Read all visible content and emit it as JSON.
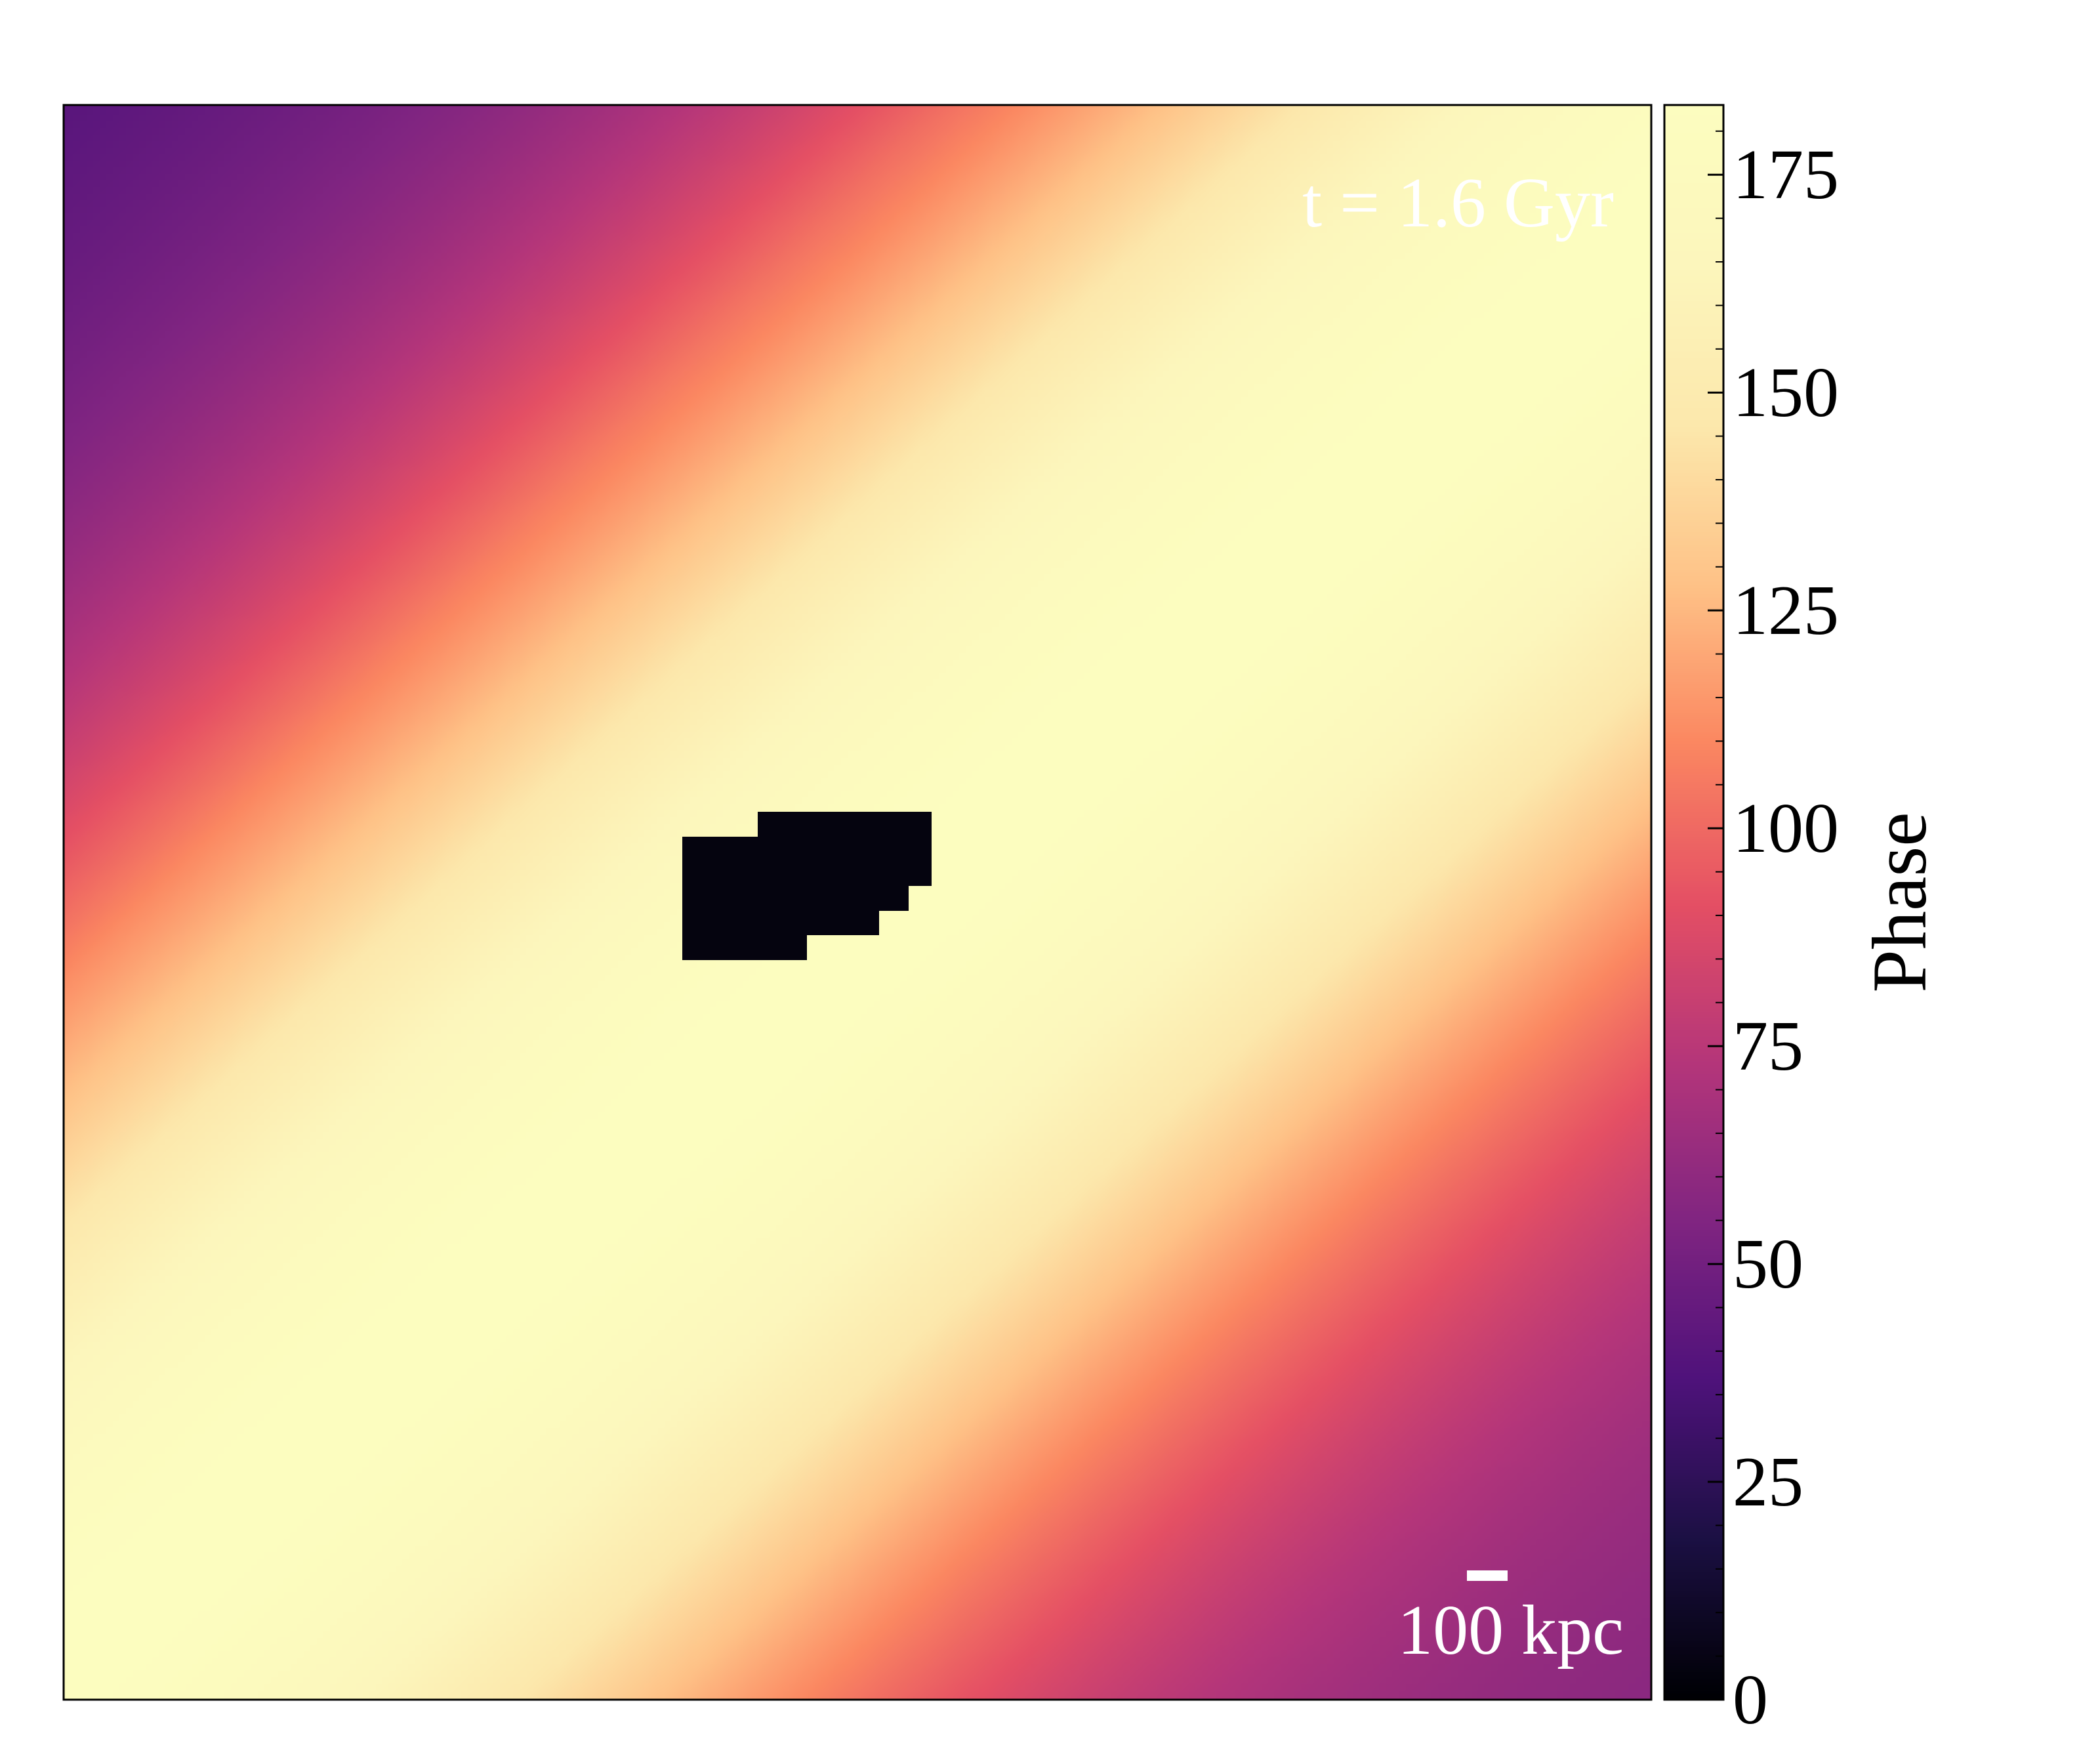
{
  "chart_data": {
    "type": "heatmap",
    "colormap": "magma",
    "annotation_time": "t = 1.6 Gyr",
    "scale_bar_label": "100 kpc",
    "colorbar": {
      "label": "Phase",
      "vmin": 0,
      "vmax": 183,
      "major_ticks": [
        0,
        25,
        50,
        75,
        100,
        125,
        150,
        175
      ],
      "tick_labels": [
        "0",
        "25",
        "50",
        "75",
        "100",
        "125",
        "150",
        "175"
      ],
      "minor_tick_step": 5
    },
    "field_description_values": {
      "band_orientation": "diagonal bottom-left to top-right",
      "min_phase_corner": "top-left",
      "masked_region": "central"
    },
    "colors": {
      "text_light": "#ffffff",
      "axis": "#000000",
      "mask": "#05040f"
    }
  }
}
